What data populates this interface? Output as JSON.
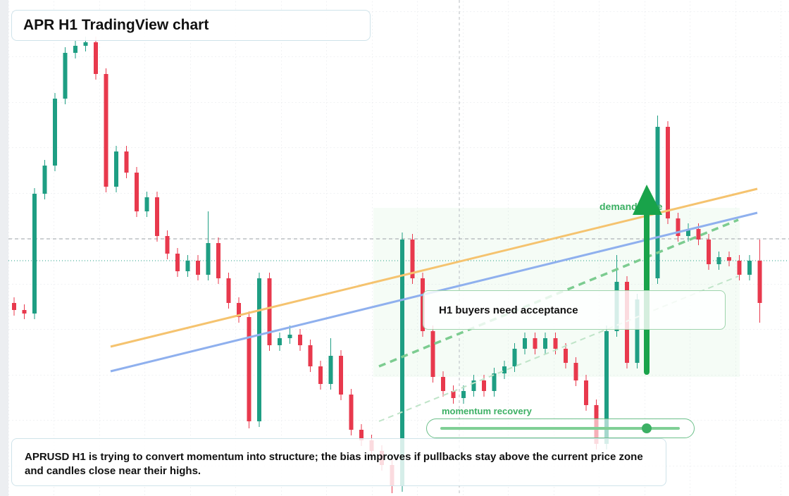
{
  "chart_data": {
    "type": "candlestick",
    "title": "APR H1 TradingView chart",
    "annotations": {
      "summary": "APRUSD H1 is trying to convert momentum into structure; the bias improves if pullbacks stay above the current price zone and candles close near their highs.",
      "zone": "demand zone",
      "buyers": "H1 buyers need acceptance",
      "momentum": "momentum recovery"
    },
    "up_color": "#1e9e83",
    "down_color": "#e8394d",
    "ylim": [
      0,
      704
    ],
    "ohlc": [
      [
        274,
        282,
        256,
        264
      ],
      [
        264,
        272,
        251,
        259
      ],
      [
        259,
        437,
        251,
        429
      ],
      [
        429,
        477,
        421,
        469
      ],
      [
        469,
        572,
        461,
        564
      ],
      [
        564,
        637,
        556,
        629
      ],
      [
        629,
        647,
        621,
        639
      ],
      [
        639,
        652,
        631,
        644
      ],
      [
        644,
        652,
        591,
        599
      ],
      [
        599,
        607,
        431,
        439
      ],
      [
        439,
        497,
        431,
        489
      ],
      [
        489,
        497,
        451,
        459
      ],
      [
        459,
        467,
        396,
        404
      ],
      [
        404,
        432,
        396,
        424
      ],
      [
        424,
        432,
        361,
        369
      ],
      [
        369,
        377,
        336,
        344
      ],
      [
        344,
        352,
        311,
        319
      ],
      [
        319,
        342,
        311,
        334
      ],
      [
        334,
        342,
        306,
        314
      ],
      [
        314,
        404,
        306,
        359
      ],
      [
        359,
        367,
        301,
        309
      ],
      [
        309,
        317,
        266,
        274
      ],
      [
        274,
        282,
        246,
        254
      ],
      [
        254,
        262,
        96,
        106
      ],
      [
        106,
        317,
        98,
        309
      ],
      [
        309,
        317,
        206,
        214
      ],
      [
        214,
        232,
        206,
        224
      ],
      [
        224,
        242,
        216,
        229
      ],
      [
        229,
        237,
        206,
        214
      ],
      [
        214,
        222,
        176,
        184
      ],
      [
        184,
        192,
        151,
        159
      ],
      [
        159,
        224,
        151,
        199
      ],
      [
        199,
        207,
        136,
        144
      ],
      [
        144,
        152,
        86,
        94
      ],
      [
        94,
        102,
        71,
        79
      ],
      [
        79,
        87,
        56,
        64
      ],
      [
        64,
        72,
        36,
        44
      ],
      [
        44,
        52,
        4,
        14
      ],
      [
        14,
        374,
        6,
        364
      ],
      [
        364,
        372,
        301,
        309
      ],
      [
        309,
        317,
        226,
        234
      ],
      [
        234,
        242,
        161,
        169
      ],
      [
        169,
        177,
        141,
        149
      ],
      [
        149,
        157,
        131,
        139
      ],
      [
        139,
        157,
        131,
        149
      ],
      [
        149,
        172,
        141,
        164
      ],
      [
        164,
        172,
        141,
        149
      ],
      [
        149,
        182,
        141,
        174
      ],
      [
        174,
        192,
        166,
        184
      ],
      [
        184,
        217,
        176,
        209
      ],
      [
        209,
        232,
        201,
        224
      ],
      [
        224,
        232,
        201,
        209
      ],
      [
        209,
        232,
        201,
        224
      ],
      [
        224,
        232,
        201,
        209
      ],
      [
        209,
        217,
        181,
        189
      ],
      [
        189,
        197,
        156,
        164
      ],
      [
        164,
        172,
        121,
        129
      ],
      [
        129,
        137,
        66,
        74
      ],
      [
        74,
        242,
        66,
        234
      ],
      [
        234,
        342,
        226,
        304
      ],
      [
        304,
        312,
        181,
        189
      ],
      [
        189,
        287,
        181,
        279
      ],
      [
        279,
        317,
        271,
        309
      ],
      [
        309,
        540,
        301,
        524
      ],
      [
        524,
        532,
        386,
        394
      ],
      [
        394,
        402,
        361,
        369
      ],
      [
        369,
        387,
        361,
        379
      ],
      [
        379,
        387,
        356,
        364
      ],
      [
        364,
        372,
        321,
        329
      ],
      [
        329,
        347,
        321,
        339
      ],
      [
        339,
        347,
        326,
        334
      ],
      [
        334,
        342,
        306,
        314
      ],
      [
        314,
        342,
        306,
        334
      ],
      [
        334,
        364,
        246,
        274
      ]
    ]
  }
}
